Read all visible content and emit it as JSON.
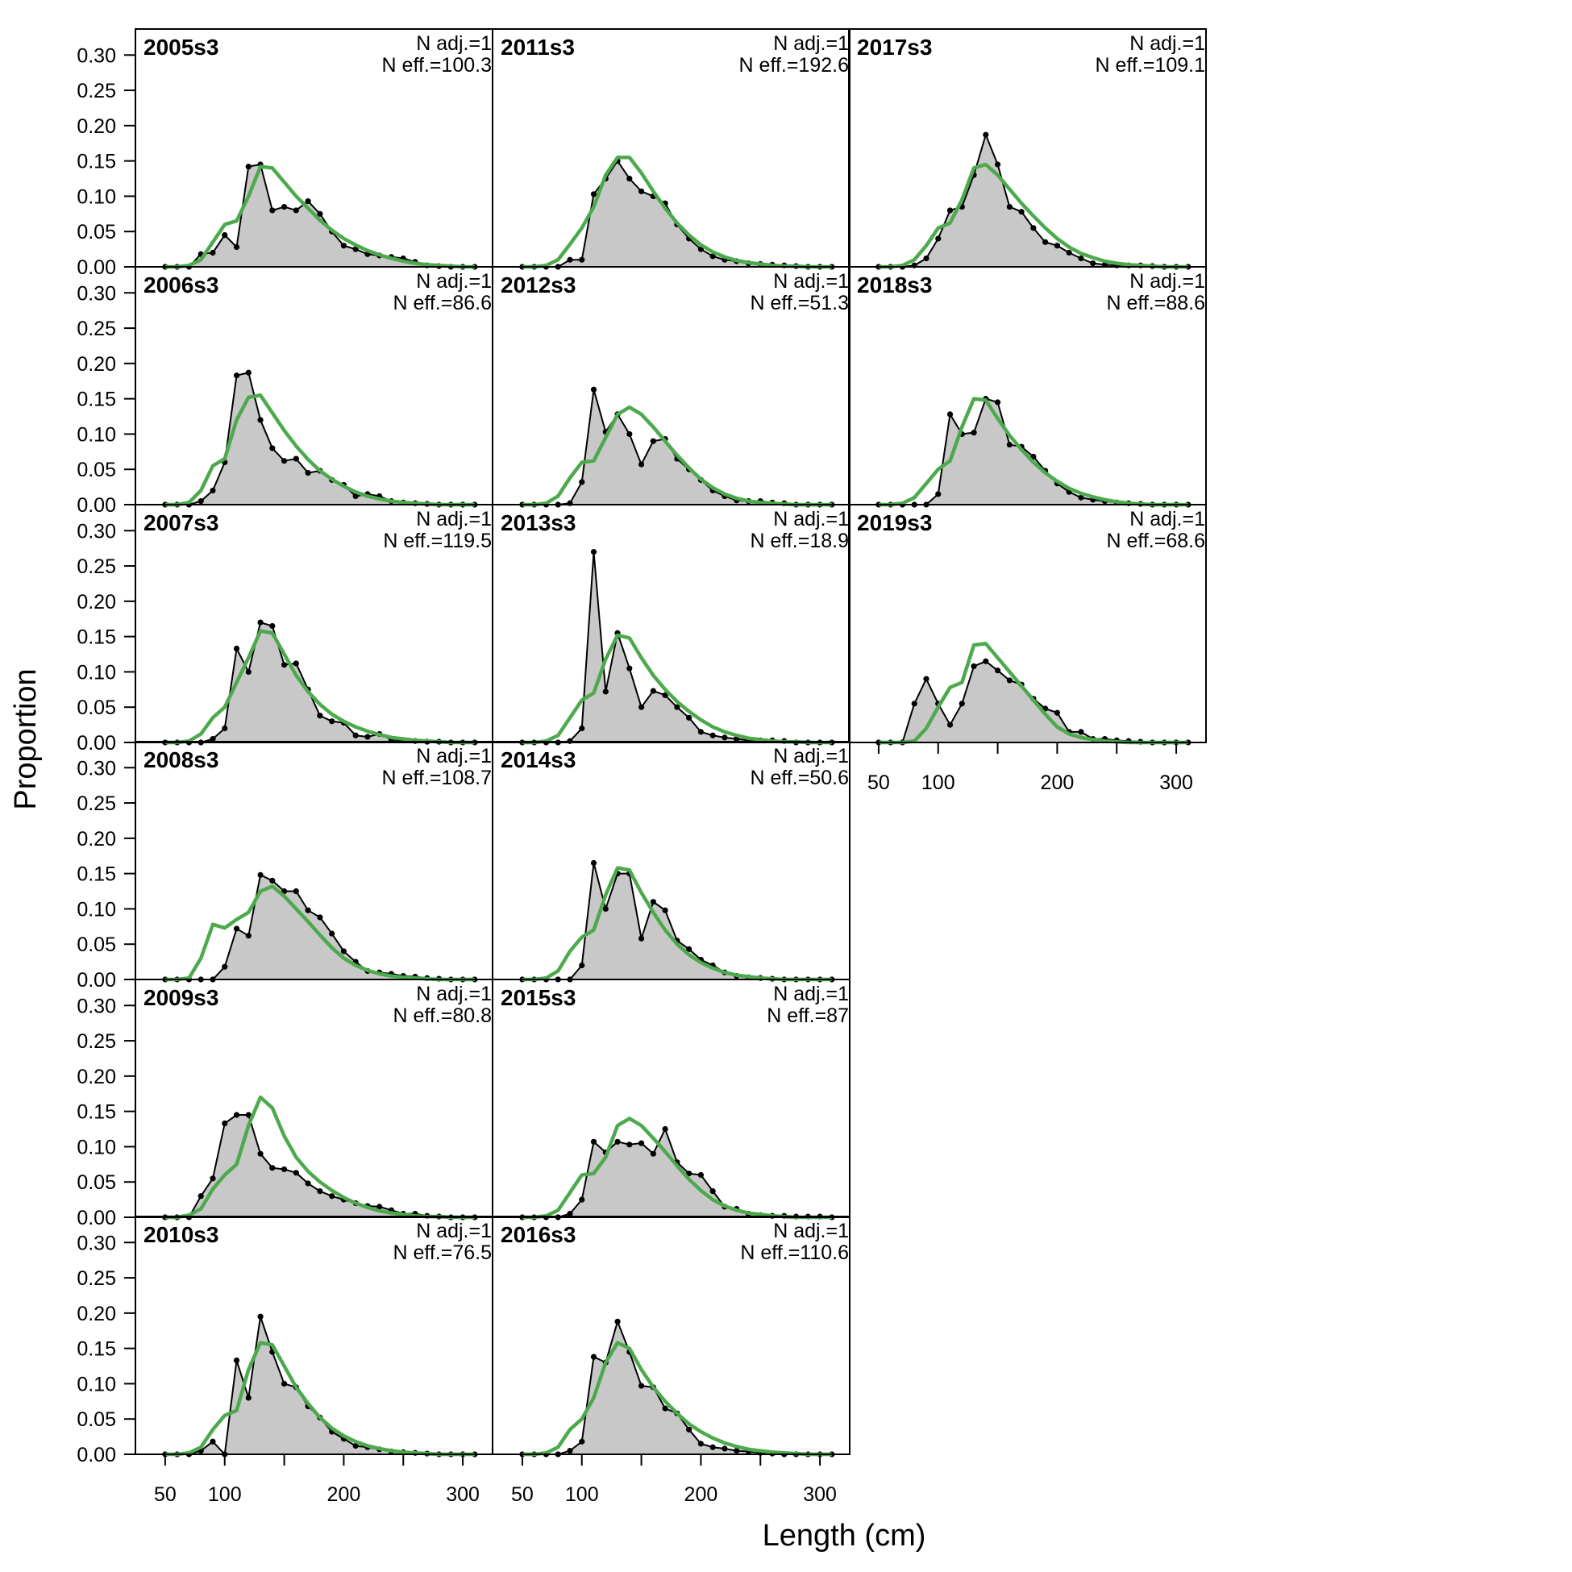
{
  "figure": {
    "ylabel": "Proportion",
    "xlabel": "Length (cm)"
  },
  "axes": {
    "x_ticks": [
      50,
      100,
      200,
      300
    ],
    "x_minor_ticks": [
      150,
      250
    ],
    "xlim": [
      25,
      325
    ],
    "y_ticks": [
      "0.00",
      "0.05",
      "0.10",
      "0.15",
      "0.20",
      "0.25",
      "0.30"
    ],
    "ylim": [
      0,
      0.33
    ]
  },
  "colors": {
    "observed_fill": "#c8c8c8",
    "observed_line": "#000000",
    "expected_line": "#4caa4c",
    "zero_line": "#bebebe"
  },
  "chart_data": {
    "type": "area",
    "bins": [
      50,
      60,
      70,
      80,
      90,
      100,
      110,
      120,
      130,
      140,
      150,
      160,
      170,
      180,
      190,
      200,
      210,
      220,
      230,
      240,
      250,
      260,
      270,
      280,
      290,
      300,
      310
    ],
    "series_types": {
      "observed": "area with points",
      "expected": "line"
    },
    "panels": [
      {
        "title": "2005s3",
        "n_adj": "N adj.=1",
        "n_eff": "N eff.=100.3",
        "observed": [
          0,
          0,
          0,
          0.018,
          0.02,
          0.045,
          0.028,
          0.142,
          0.145,
          0.08,
          0.085,
          0.08,
          0.093,
          0.075,
          0.05,
          0.03,
          0.025,
          0.018,
          0.016,
          0.014,
          0.012,
          0.007,
          0.002,
          0.001,
          0,
          0,
          0
        ],
        "expected": [
          0,
          0,
          0.002,
          0.01,
          0.035,
          0.06,
          0.065,
          0.1,
          0.142,
          0.14,
          0.12,
          0.1,
          0.083,
          0.066,
          0.052,
          0.04,
          0.031,
          0.023,
          0.017,
          0.012,
          0.008,
          0.005,
          0.003,
          0.002,
          0.001,
          0,
          0
        ]
      },
      {
        "title": "2006s3",
        "n_adj": "N adj.=1",
        "n_eff": "N eff.=86.6",
        "observed": [
          0,
          0,
          0,
          0.005,
          0.02,
          0.06,
          0.183,
          0.187,
          0.12,
          0.08,
          0.062,
          0.065,
          0.045,
          0.048,
          0.035,
          0.028,
          0.012,
          0.015,
          0.012,
          0.005,
          0.003,
          0.002,
          0.001,
          0,
          0,
          0,
          0
        ],
        "expected": [
          0,
          0,
          0.003,
          0.02,
          0.055,
          0.065,
          0.12,
          0.152,
          0.155,
          0.13,
          0.105,
          0.083,
          0.064,
          0.048,
          0.036,
          0.026,
          0.018,
          0.012,
          0.008,
          0.005,
          0.003,
          0.002,
          0.001,
          0,
          0,
          0,
          0
        ]
      },
      {
        "title": "2007s3",
        "n_adj": "N adj.=1",
        "n_eff": "N eff.=119.5",
        "observed": [
          0,
          0,
          0,
          0,
          0.005,
          0.02,
          0.133,
          0.1,
          0.17,
          0.165,
          0.11,
          0.112,
          0.075,
          0.038,
          0.03,
          0.028,
          0.01,
          0.008,
          0.012,
          0.004,
          0.003,
          0.002,
          0.001,
          0.001,
          0,
          0,
          0
        ],
        "expected": [
          0,
          0,
          0.002,
          0.012,
          0.035,
          0.05,
          0.085,
          0.12,
          0.158,
          0.155,
          0.125,
          0.095,
          0.072,
          0.054,
          0.04,
          0.03,
          0.022,
          0.016,
          0.011,
          0.007,
          0.005,
          0.003,
          0.002,
          0.001,
          0,
          0,
          0
        ]
      },
      {
        "title": "2008s3",
        "n_adj": "N adj.=1",
        "n_eff": "N eff.=108.7",
        "observed": [
          0,
          0,
          0,
          0,
          0,
          0.018,
          0.072,
          0.062,
          0.148,
          0.14,
          0.125,
          0.125,
          0.098,
          0.088,
          0.065,
          0.04,
          0.025,
          0.012,
          0.01,
          0.008,
          0.005,
          0.004,
          0.002,
          0.001,
          0,
          0,
          0
        ],
        "expected": [
          0,
          0,
          0.002,
          0.03,
          0.078,
          0.073,
          0.085,
          0.095,
          0.125,
          0.132,
          0.118,
          0.1,
          0.082,
          0.063,
          0.045,
          0.03,
          0.02,
          0.013,
          0.008,
          0.005,
          0.003,
          0.002,
          0.001,
          0,
          0,
          0,
          0
        ]
      },
      {
        "title": "2009s3",
        "n_adj": "N adj.=1",
        "n_eff": "N eff.=80.8",
        "observed": [
          0,
          0,
          0,
          0.03,
          0.055,
          0.133,
          0.145,
          0.145,
          0.09,
          0.07,
          0.068,
          0.063,
          0.048,
          0.037,
          0.03,
          0.025,
          0.02,
          0.016,
          0.015,
          0.01,
          0.005,
          0.005,
          0.002,
          0.001,
          0,
          0,
          0
        ],
        "expected": [
          0,
          0,
          0.003,
          0.012,
          0.04,
          0.06,
          0.075,
          0.13,
          0.17,
          0.155,
          0.115,
          0.085,
          0.065,
          0.05,
          0.038,
          0.028,
          0.02,
          0.014,
          0.009,
          0.006,
          0.004,
          0.002,
          0.001,
          0.001,
          0,
          0,
          0
        ]
      },
      {
        "title": "2010s3",
        "n_adj": "N adj.=1",
        "n_eff": "N eff.=76.5",
        "observed": [
          0,
          0,
          0,
          0.005,
          0.018,
          0,
          0.133,
          0.08,
          0.195,
          0.145,
          0.1,
          0.095,
          0.068,
          0.052,
          0.032,
          0.022,
          0.012,
          0.01,
          0.007,
          0.004,
          0.003,
          0.002,
          0.001,
          0,
          0,
          0,
          0
        ],
        "expected": [
          0,
          0,
          0.002,
          0.01,
          0.035,
          0.055,
          0.062,
          0.12,
          0.158,
          0.155,
          0.125,
          0.095,
          0.072,
          0.052,
          0.037,
          0.026,
          0.018,
          0.012,
          0.008,
          0.005,
          0.003,
          0.002,
          0.001,
          0,
          0,
          0,
          0
        ]
      },
      {
        "title": "2011s3",
        "n_adj": "N adj.=1",
        "n_eff": "N eff.=192.6",
        "observed": [
          0,
          0,
          0,
          0,
          0.01,
          0.01,
          0.103,
          0.125,
          0.15,
          0.125,
          0.107,
          0.1,
          0.09,
          0.06,
          0.04,
          0.025,
          0.015,
          0.01,
          0.008,
          0.005,
          0.004,
          0.003,
          0.002,
          0.001,
          0,
          0,
          0
        ],
        "expected": [
          0,
          0,
          0.002,
          0.01,
          0.032,
          0.055,
          0.085,
          0.13,
          0.155,
          0.155,
          0.133,
          0.107,
          0.083,
          0.062,
          0.045,
          0.031,
          0.021,
          0.014,
          0.009,
          0.006,
          0.004,
          0.002,
          0.001,
          0.001,
          0,
          0,
          0
        ]
      },
      {
        "title": "2012s3",
        "n_adj": "N adj.=1",
        "n_eff": "N eff.=51.3",
        "observed": [
          0,
          0,
          0,
          0,
          0.002,
          0.032,
          0.163,
          0.103,
          0.128,
          0.1,
          0.057,
          0.09,
          0.093,
          0.065,
          0.05,
          0.035,
          0.02,
          0.012,
          0.006,
          0.005,
          0.005,
          0.003,
          0.002,
          0,
          0,
          0,
          0
        ],
        "expected": [
          0,
          0,
          0.002,
          0.012,
          0.038,
          0.06,
          0.062,
          0.095,
          0.128,
          0.138,
          0.128,
          0.11,
          0.09,
          0.07,
          0.052,
          0.036,
          0.024,
          0.015,
          0.009,
          0.005,
          0.003,
          0.002,
          0.001,
          0,
          0,
          0,
          0
        ]
      },
      {
        "title": "2013s3",
        "n_adj": "N adj.=1",
        "n_eff": "N eff.=18.9",
        "observed": [
          0,
          0,
          0,
          0,
          0.002,
          0.02,
          0.27,
          0.072,
          0.155,
          0.105,
          0.05,
          0.073,
          0.067,
          0.05,
          0.035,
          0.015,
          0.01,
          0.007,
          0.005,
          0.003,
          0.003,
          0.003,
          0.002,
          0,
          0,
          0,
          0
        ],
        "expected": [
          0,
          0,
          0.002,
          0.01,
          0.035,
          0.06,
          0.07,
          0.118,
          0.152,
          0.148,
          0.12,
          0.095,
          0.075,
          0.058,
          0.044,
          0.032,
          0.022,
          0.015,
          0.01,
          0.006,
          0.004,
          0.002,
          0.001,
          0.001,
          0,
          0,
          0
        ]
      },
      {
        "title": "2014s3",
        "n_adj": "N adj.=1",
        "n_eff": "N eff.=50.6",
        "observed": [
          0,
          0,
          0,
          0,
          0,
          0.02,
          0.165,
          0.1,
          0.15,
          0.15,
          0.058,
          0.11,
          0.098,
          0.055,
          0.043,
          0.028,
          0.02,
          0.01,
          0.005,
          0.003,
          0.002,
          0.001,
          0,
          0,
          0,
          0,
          0
        ],
        "expected": [
          0,
          0,
          0.002,
          0.012,
          0.04,
          0.06,
          0.07,
          0.12,
          0.158,
          0.155,
          0.123,
          0.095,
          0.07,
          0.05,
          0.035,
          0.024,
          0.016,
          0.01,
          0.006,
          0.004,
          0.002,
          0.001,
          0,
          0,
          0,
          0,
          0
        ]
      },
      {
        "title": "2015s3",
        "n_adj": "N adj.=1",
        "n_eff": "N eff.=87",
        "observed": [
          0,
          0,
          0,
          0,
          0.005,
          0.025,
          0.107,
          0.092,
          0.107,
          0.103,
          0.105,
          0.09,
          0.125,
          0.078,
          0.062,
          0.06,
          0.037,
          0.015,
          0.012,
          0.005,
          0.003,
          0.002,
          0.002,
          0.001,
          0.001,
          0.001,
          0
        ],
        "expected": [
          0,
          0,
          0.002,
          0.01,
          0.035,
          0.06,
          0.062,
          0.085,
          0.13,
          0.14,
          0.13,
          0.112,
          0.093,
          0.073,
          0.054,
          0.038,
          0.025,
          0.016,
          0.01,
          0.006,
          0.004,
          0.002,
          0.001,
          0,
          0,
          0,
          0
        ]
      },
      {
        "title": "2016s3",
        "n_adj": "N adj.=1",
        "n_eff": "N eff.=110.6",
        "observed": [
          0,
          0,
          0,
          0,
          0.005,
          0.018,
          0.138,
          0.13,
          0.188,
          0.145,
          0.097,
          0.095,
          0.065,
          0.058,
          0.035,
          0.015,
          0.01,
          0.008,
          0.005,
          0.004,
          0.002,
          0.001,
          0,
          0,
          0,
          0,
          0
        ],
        "expected": [
          0,
          0,
          0.002,
          0.01,
          0.035,
          0.05,
          0.08,
          0.13,
          0.158,
          0.15,
          0.12,
          0.095,
          0.075,
          0.058,
          0.043,
          0.032,
          0.023,
          0.016,
          0.011,
          0.007,
          0.005,
          0.003,
          0.002,
          0.001,
          0,
          0,
          0
        ]
      },
      {
        "title": "2017s3",
        "n_adj": "N adj.=1",
        "n_eff": "N eff.=109.1",
        "observed": [
          0,
          0,
          0,
          0.002,
          0.012,
          0.04,
          0.08,
          0.085,
          0.13,
          0.187,
          0.145,
          0.085,
          0.078,
          0.055,
          0.035,
          0.03,
          0.02,
          0.012,
          0.005,
          0.003,
          0.002,
          0.002,
          0.002,
          0.001,
          0,
          0,
          0
        ],
        "expected": [
          0,
          0,
          0.002,
          0.01,
          0.03,
          0.055,
          0.062,
          0.095,
          0.14,
          0.145,
          0.13,
          0.11,
          0.09,
          0.072,
          0.055,
          0.04,
          0.028,
          0.019,
          0.013,
          0.008,
          0.005,
          0.003,
          0.002,
          0.001,
          0,
          0,
          0
        ]
      },
      {
        "title": "2018s3",
        "n_adj": "N adj.=1",
        "n_eff": "N eff.=88.6",
        "observed": [
          0,
          0,
          0,
          0,
          0,
          0.015,
          0.128,
          0.1,
          0.102,
          0.15,
          0.145,
          0.085,
          0.082,
          0.068,
          0.048,
          0.03,
          0.018,
          0.01,
          0.007,
          0.005,
          0.003,
          0.002,
          0.001,
          0,
          0,
          0,
          0
        ],
        "expected": [
          0,
          0,
          0.002,
          0.01,
          0.03,
          0.05,
          0.062,
          0.11,
          0.15,
          0.148,
          0.122,
          0.098,
          0.078,
          0.06,
          0.045,
          0.033,
          0.023,
          0.016,
          0.011,
          0.007,
          0.004,
          0.002,
          0.001,
          0,
          0,
          0,
          0
        ]
      },
      {
        "title": "2019s3",
        "n_adj": "N adj.=1",
        "n_eff": "N eff.=68.6",
        "observed": [
          0,
          0,
          0,
          0.055,
          0.09,
          0.055,
          0.025,
          0.055,
          0.108,
          0.115,
          0.102,
          0.088,
          0.082,
          0.062,
          0.048,
          0.042,
          0.015,
          0.015,
          0.005,
          0.005,
          0.003,
          0.002,
          0.001,
          0,
          0,
          0,
          0
        ],
        "expected": [
          0,
          0,
          0,
          0.002,
          0.02,
          0.05,
          0.078,
          0.085,
          0.138,
          0.14,
          0.12,
          0.1,
          0.08,
          0.06,
          0.04,
          0.022,
          0.012,
          0.007,
          0.004,
          0.002,
          0.001,
          0,
          0,
          0,
          0,
          0,
          0
        ]
      }
    ]
  }
}
